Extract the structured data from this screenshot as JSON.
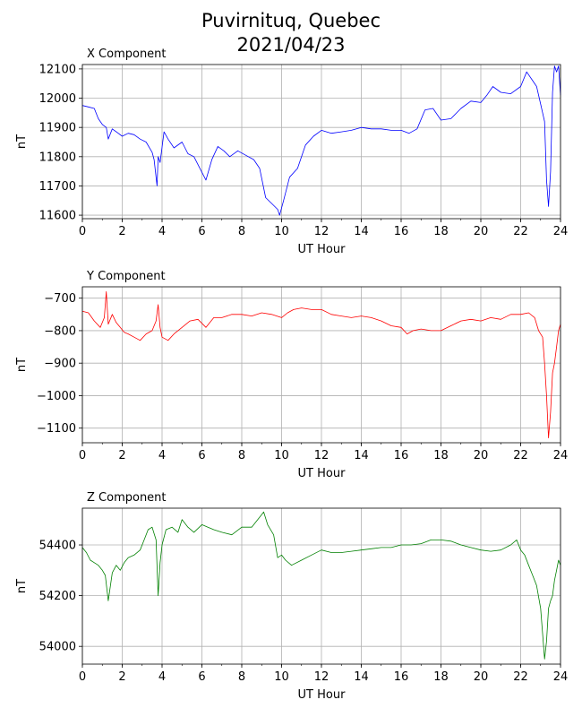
{
  "page": {
    "title_line1": "Puvirnituq, Quebec",
    "title_line2": "2021/04/23"
  },
  "chart_data": [
    {
      "type": "line",
      "title": "X Component",
      "xlabel": "UT Hour",
      "ylabel": "nT",
      "color": "#0000ff",
      "grid": true,
      "xlim": [
        0,
        24
      ],
      "ylim": [
        11588,
        12115
      ],
      "xticks": [
        "0",
        "2",
        "4",
        "6",
        "8",
        "10",
        "12",
        "14",
        "16",
        "18",
        "20",
        "22",
        "24"
      ],
      "yticks": [
        "11600",
        "11700",
        "11800",
        "11900",
        "12000",
        "12100"
      ],
      "series": [
        {
          "x": [
            0,
            0.3,
            0.6,
            0.8,
            1.0,
            1.2,
            1.3,
            1.5,
            1.8,
            2.0,
            2.3,
            2.6,
            2.9,
            3.2,
            3.5,
            3.6,
            3.75,
            3.8,
            3.9,
            4.1,
            4.3,
            4.6,
            5.0,
            5.3,
            5.6,
            5.9,
            6.2,
            6.5,
            6.8,
            7.1,
            7.4,
            7.8,
            8.2,
            8.6,
            8.9,
            9.2,
            9.5,
            9.8,
            9.9,
            10.1,
            10.4,
            10.8,
            11.2,
            11.6,
            12.0,
            12.5,
            13.0,
            13.5,
            14.0,
            14.5,
            15.0,
            15.5,
            16.0,
            16.4,
            16.8,
            17.2,
            17.6,
            18.0,
            18.5,
            19.0,
            19.5,
            20.0,
            20.3,
            20.6,
            21.0,
            21.5,
            22.0,
            22.3,
            22.6,
            22.8,
            23.0,
            23.2,
            23.3,
            23.4,
            23.5,
            23.6,
            23.7,
            23.8,
            23.9,
            24.0
          ],
          "y": [
            11975,
            11970,
            11965,
            11930,
            11910,
            11900,
            11860,
            11895,
            11880,
            11870,
            11880,
            11875,
            11860,
            11850,
            11815,
            11790,
            11700,
            11800,
            11780,
            11885,
            11860,
            11830,
            11850,
            11810,
            11800,
            11760,
            11720,
            11790,
            11835,
            11820,
            11800,
            11820,
            11805,
            11790,
            11760,
            11660,
            11640,
            11620,
            11600,
            11650,
            11730,
            11760,
            11840,
            11870,
            11890,
            11880,
            11885,
            11890,
            11900,
            11895,
            11895,
            11890,
            11890,
            11880,
            11895,
            11960,
            11965,
            11925,
            11930,
            11965,
            11990,
            11985,
            12010,
            12040,
            12020,
            12015,
            12040,
            12090,
            12060,
            12040,
            11980,
            11920,
            11720,
            11630,
            11750,
            12020,
            12110,
            12090,
            12110,
            12010
          ]
        }
      ]
    },
    {
      "type": "line",
      "title": "Y Component",
      "xlabel": "UT Hour",
      "ylabel": "nT",
      "color": "#ff0000",
      "grid": true,
      "xlim": [
        0,
        24
      ],
      "ylim": [
        -1145,
        -665
      ],
      "xticks": [
        "0",
        "2",
        "4",
        "6",
        "8",
        "10",
        "12",
        "14",
        "16",
        "18",
        "20",
        "22",
        "24"
      ],
      "yticks": [
        "−700",
        "−800",
        "−900",
        "−1000",
        "−1100"
      ],
      "series": [
        {
          "x": [
            0,
            0.3,
            0.6,
            0.9,
            1.1,
            1.2,
            1.3,
            1.5,
            1.7,
            1.9,
            2.1,
            2.3,
            2.6,
            2.9,
            3.2,
            3.5,
            3.7,
            3.8,
            3.9,
            4.0,
            4.3,
            4.6,
            5.0,
            5.4,
            5.8,
            6.2,
            6.6,
            7.0,
            7.5,
            8.0,
            8.5,
            9.0,
            9.5,
            10.0,
            10.3,
            10.6,
            11.0,
            11.5,
            12.0,
            12.5,
            13.0,
            13.5,
            14.0,
            14.5,
            15.0,
            15.5,
            16.0,
            16.3,
            16.6,
            17.0,
            17.5,
            18.0,
            18.5,
            19.0,
            19.5,
            20.0,
            20.5,
            21.0,
            21.5,
            22.0,
            22.4,
            22.7,
            22.9,
            23.1,
            23.2,
            23.3,
            23.4,
            23.5,
            23.6,
            23.7,
            23.8,
            23.9,
            24.0
          ],
          "y": [
            -740,
            -745,
            -770,
            -790,
            -760,
            -680,
            -780,
            -750,
            -775,
            -790,
            -805,
            -810,
            -820,
            -830,
            -810,
            -800,
            -770,
            -720,
            -790,
            -820,
            -830,
            -810,
            -790,
            -770,
            -765,
            -790,
            -760,
            -760,
            -750,
            -750,
            -755,
            -745,
            -750,
            -760,
            -745,
            -735,
            -730,
            -735,
            -735,
            -750,
            -755,
            -760,
            -755,
            -760,
            -770,
            -785,
            -790,
            -810,
            -800,
            -795,
            -800,
            -800,
            -785,
            -770,
            -765,
            -770,
            -760,
            -765,
            -750,
            -750,
            -745,
            -760,
            -800,
            -820,
            -900,
            -1000,
            -1130,
            -1050,
            -930,
            -900,
            -850,
            -800,
            -780
          ]
        }
      ]
    },
    {
      "type": "line",
      "title": "Z Component",
      "xlabel": "UT Hour",
      "ylabel": "nT",
      "color": "#008000",
      "grid": true,
      "xlim": [
        0,
        24
      ],
      "ylim": [
        53930,
        54545
      ],
      "xticks": [
        "0",
        "2",
        "4",
        "6",
        "8",
        "10",
        "12",
        "14",
        "16",
        "18",
        "20",
        "22",
        "24"
      ],
      "yticks": [
        "54000",
        "54200",
        "54400"
      ],
      "series": [
        {
          "x": [
            0,
            0.2,
            0.4,
            0.6,
            0.8,
            1.0,
            1.15,
            1.3,
            1.5,
            1.7,
            1.9,
            2.1,
            2.3,
            2.6,
            2.9,
            3.1,
            3.3,
            3.5,
            3.7,
            3.8,
            3.9,
            4.0,
            4.2,
            4.5,
            4.8,
            5.0,
            5.3,
            5.6,
            6.0,
            6.3,
            6.6,
            7.0,
            7.5,
            8.0,
            8.5,
            9.0,
            9.1,
            9.3,
            9.6,
            9.8,
            10.0,
            10.2,
            10.5,
            11.0,
            11.5,
            12.0,
            12.5,
            13.0,
            13.5,
            14.0,
            14.5,
            15.0,
            15.5,
            16.0,
            16.5,
            17.0,
            17.5,
            18.0,
            18.5,
            19.0,
            19.5,
            20.0,
            20.5,
            21.0,
            21.5,
            21.8,
            22.0,
            22.2,
            22.4,
            22.6,
            22.8,
            23.0,
            23.1,
            23.2,
            23.3,
            23.4,
            23.5,
            23.6,
            23.7,
            23.8,
            23.9,
            24.0
          ],
          "y": [
            54390,
            54370,
            54340,
            54330,
            54320,
            54300,
            54280,
            54180,
            54290,
            54320,
            54300,
            54330,
            54350,
            54360,
            54380,
            54420,
            54460,
            54470,
            54420,
            54200,
            54330,
            54400,
            54460,
            54470,
            54450,
            54500,
            54470,
            54450,
            54480,
            54470,
            54460,
            54450,
            54440,
            54470,
            54470,
            54520,
            54530,
            54480,
            54440,
            54350,
            54360,
            54340,
            54320,
            54340,
            54360,
            54380,
            54370,
            54370,
            54375,
            54380,
            54385,
            54390,
            54390,
            54400,
            54400,
            54405,
            54420,
            54420,
            54415,
            54400,
            54390,
            54380,
            54375,
            54380,
            54400,
            54420,
            54380,
            54360,
            54320,
            54280,
            54240,
            54150,
            54050,
            53950,
            54020,
            54150,
            54180,
            54200,
            54260,
            54300,
            54340,
            54320
          ]
        }
      ]
    }
  ]
}
